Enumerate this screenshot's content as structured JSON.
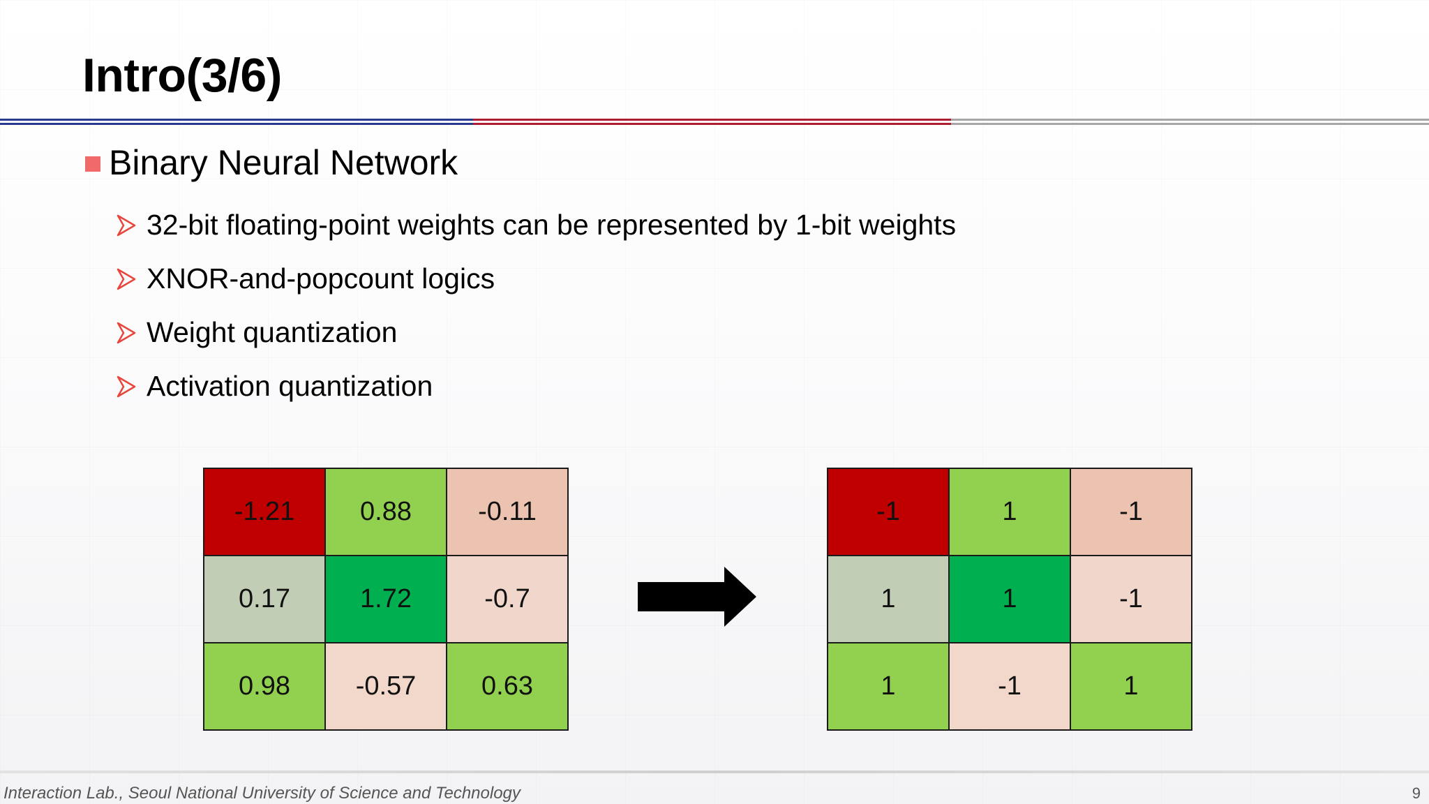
{
  "slide": {
    "title": "Intro(3/6)",
    "bullet": "Binary Neural Network",
    "sub_bullets": [
      "32-bit floating-point weights can be represented by 1-bit weights",
      "XNOR-and-popcount logics",
      "Weight quantization",
      "Activation quantization"
    ]
  },
  "matrices": {
    "float_weights": [
      [
        "-1.21",
        "0.88",
        "-0.11"
      ],
      [
        "0.17",
        "1.72",
        "-0.7"
      ],
      [
        "0.98",
        "-0.57",
        "0.63"
      ]
    ],
    "binary_weights": [
      [
        "-1",
        "1",
        "-1"
      ],
      [
        "1",
        "1",
        "-1"
      ],
      [
        "1",
        "-1",
        "1"
      ]
    ],
    "cell_colors": [
      [
        "#c00000",
        "#92d050",
        "#ecc2b1"
      ],
      [
        "#c2cdb6",
        "#00b050",
        "#f1d6cb"
      ],
      [
        "#92d050",
        "#f2d8ca",
        "#92d050"
      ]
    ]
  },
  "footer": {
    "text": "Interaction Lab., Seoul National University of Science and Technology",
    "page_number": "9"
  },
  "colors": {
    "bullet_square": "#f06a6a",
    "arrow_bullet": "#e8453c",
    "rule_blue": "#2a3a8e",
    "rule_red": "#b01c32",
    "rule_gray": "#a6a6a6"
  },
  "icons": {
    "sub_bullet": "arrow-bullet-icon",
    "transform": "right-arrow-icon"
  }
}
